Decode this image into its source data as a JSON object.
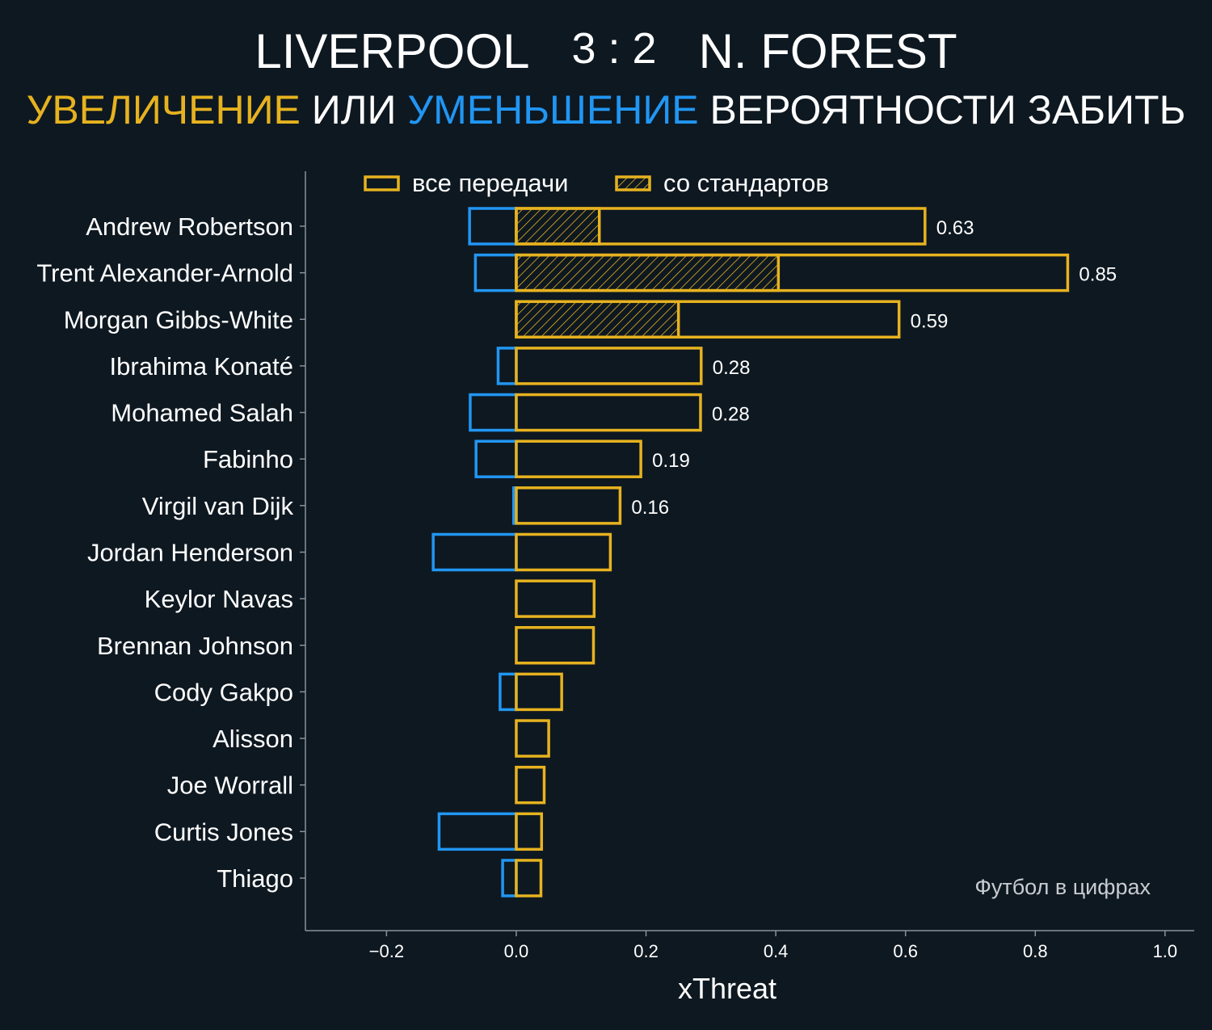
{
  "header": {
    "home_team": "LIVERPOOL",
    "score": "3 : 2",
    "away_team": "N. FOREST",
    "subtitle_parts": [
      {
        "text": "УВЕЛИЧЕНИЕ",
        "color": "#e6b21f"
      },
      {
        "text": " ИЛИ ",
        "color": "#ffffff"
      },
      {
        "text": "УМЕНЬШЕНИЕ",
        "color": "#2196f3"
      },
      {
        "text": " ВЕРОЯТНОСТИ ЗАБИТЬ",
        "color": "#ffffff"
      }
    ]
  },
  "colors": {
    "background": "#0e1821",
    "increase": "#e6b21f",
    "decrease": "#2196f3",
    "axis": "#8a9199",
    "text": "#ffffff"
  },
  "chart_data": {
    "type": "bar",
    "orientation": "horizontal",
    "title": "",
    "xlabel": "xThreat",
    "ylabel": "",
    "xlim": [
      -0.325,
      1.045
    ],
    "xticks": [
      -0.2,
      0.0,
      0.2,
      0.4,
      0.6,
      0.8,
      1.0
    ],
    "xtick_labels": [
      "−0.2",
      "0.0",
      "0.2",
      "0.4",
      "0.6",
      "0.8",
      "1.0"
    ],
    "legend": {
      "placement": "top",
      "entries": [
        {
          "label": "все передачи",
          "style": "outline"
        },
        {
          "label": "со стандартов",
          "style": "hatched"
        }
      ]
    },
    "categories": [
      "Andrew Robertson",
      "Trent Alexander-Arnold",
      "Morgan Gibbs-White",
      "Ibrahima Konaté",
      "Mohamed Salah",
      "Fabinho",
      "Virgil van Dijk",
      "Jordan Henderson",
      "Keylor Navas",
      "Brennan Johnson",
      "Cody Gakpo",
      "Alisson",
      "Joe Worrall",
      "Curtis Jones",
      "Thiago"
    ],
    "series": [
      {
        "name": "все передачи",
        "values": [
          0.63,
          0.85,
          0.59,
          0.285,
          0.284,
          0.192,
          0.16,
          0.145,
          0.12,
          0.119,
          0.07,
          0.05,
          0.043,
          0.039,
          0.038
        ]
      },
      {
        "name": "со стандартов",
        "values": [
          0.128,
          0.404,
          0.25,
          0,
          0,
          0,
          0,
          0,
          0,
          0,
          0,
          0,
          0,
          0,
          0
        ]
      },
      {
        "name": "decrease",
        "values": [
          -0.072,
          -0.063,
          0,
          -0.028,
          -0.071,
          -0.062,
          -0.004,
          -0.128,
          0,
          0,
          -0.025,
          0,
          0,
          -0.119,
          -0.021
        ]
      }
    ],
    "value_labels": [
      "0.63",
      "0.85",
      "0.59",
      "0.28",
      "0.28",
      "0.19",
      "0.16",
      "",
      "",
      "",
      "",
      "",
      "",
      "",
      ""
    ]
  },
  "watermark": "Футбол в цифрах"
}
